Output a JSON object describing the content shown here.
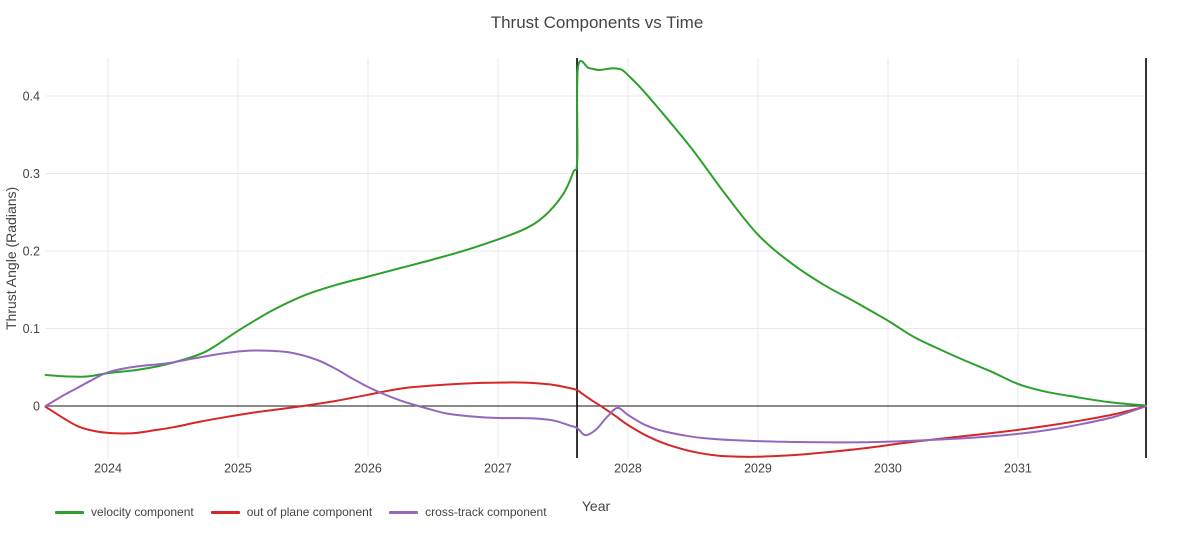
{
  "chart_data": {
    "type": "line",
    "title": "Thrust Components vs Time",
    "xlabel": "Year",
    "ylabel": "Thrust Angle (Radians)",
    "grid": true,
    "legend_position": "bottom-left",
    "background_color": "#ffffff",
    "gridline_color": "#e9e9e9",
    "zeroline_color": "#444444",
    "text_color": "#444444",
    "x_range": [
      2023.523,
      2031.985
    ],
    "y_range": [
      -0.0671,
      0.449
    ],
    "x_ticks": [
      {
        "v": 2024,
        "label": "2024"
      },
      {
        "v": 2025,
        "label": "2025"
      },
      {
        "v": 2026,
        "label": "2026"
      },
      {
        "v": 2027,
        "label": "2027"
      },
      {
        "v": 2028,
        "label": "2028"
      },
      {
        "v": 2029,
        "label": "2029"
      },
      {
        "v": 2030,
        "label": "2030"
      },
      {
        "v": 2031,
        "label": "2031"
      }
    ],
    "y_ticks": [
      {
        "v": 0,
        "label": "0"
      },
      {
        "v": 0.1,
        "label": "0.1"
      },
      {
        "v": 0.2,
        "label": "0.2"
      },
      {
        "v": 0.3,
        "label": "0.3"
      },
      {
        "v": 0.4,
        "label": "0.4"
      }
    ],
    "vlines": [
      {
        "x": 2027.608,
        "color": "#000000"
      },
      {
        "x": 2031.985,
        "color": "#000000"
      }
    ],
    "series": [
      {
        "name": "velocity component",
        "color": "#2ca02c",
        "points": [
          [
            2023.52,
            0.04
          ],
          [
            2023.7,
            0.038
          ],
          [
            2023.85,
            0.0382
          ],
          [
            2024.0,
            0.0425
          ],
          [
            2024.25,
            0.0472
          ],
          [
            2024.5,
            0.056
          ],
          [
            2024.75,
            0.07
          ],
          [
            2025.0,
            0.097
          ],
          [
            2025.25,
            0.122
          ],
          [
            2025.5,
            0.142
          ],
          [
            2025.75,
            0.156
          ],
          [
            2026.0,
            0.167
          ],
          [
            2026.25,
            0.178
          ],
          [
            2026.5,
            0.189
          ],
          [
            2026.75,
            0.201
          ],
          [
            2027.0,
            0.215
          ],
          [
            2027.2,
            0.228
          ],
          [
            2027.35,
            0.244
          ],
          [
            2027.5,
            0.273
          ],
          [
            2027.58,
            0.302
          ],
          [
            2027.61,
            0.318
          ],
          [
            2027.615,
            0.4365
          ],
          [
            2027.7,
            0.436
          ],
          [
            2027.78,
            0.4335
          ],
          [
            2027.88,
            0.4358
          ],
          [
            2027.95,
            0.434
          ],
          [
            2028.0,
            0.427
          ],
          [
            2028.1,
            0.41
          ],
          [
            2028.25,
            0.381
          ],
          [
            2028.5,
            0.33
          ],
          [
            2028.75,
            0.273
          ],
          [
            2029.0,
            0.221
          ],
          [
            2029.25,
            0.185
          ],
          [
            2029.5,
            0.157
          ],
          [
            2029.75,
            0.134
          ],
          [
            2030.0,
            0.11
          ],
          [
            2030.2,
            0.089
          ],
          [
            2030.42,
            0.0715
          ],
          [
            2030.6,
            0.058
          ],
          [
            2030.8,
            0.044
          ],
          [
            2031.0,
            0.0285
          ],
          [
            2031.2,
            0.019
          ],
          [
            2031.45,
            0.0115
          ],
          [
            2031.7,
            0.005
          ],
          [
            2031.985,
            0.0005
          ]
        ]
      },
      {
        "name": "out of plane component",
        "color": "#d62728",
        "points": [
          [
            2023.52,
            -0.001
          ],
          [
            2023.66,
            -0.016
          ],
          [
            2023.78,
            -0.027
          ],
          [
            2023.92,
            -0.033
          ],
          [
            2024.05,
            -0.0352
          ],
          [
            2024.2,
            -0.035
          ],
          [
            2024.35,
            -0.0315
          ],
          [
            2024.5,
            -0.0275
          ],
          [
            2024.7,
            -0.0205
          ],
          [
            2024.9,
            -0.0145
          ],
          [
            2025.1,
            -0.009
          ],
          [
            2025.3,
            -0.0045
          ],
          [
            2025.5,
            0.0
          ],
          [
            2025.75,
            0.0065
          ],
          [
            2026.0,
            0.0145
          ],
          [
            2026.25,
            0.0225
          ],
          [
            2026.5,
            0.0265
          ],
          [
            2026.75,
            0.029
          ],
          [
            2027.0,
            0.0302
          ],
          [
            2027.2,
            0.0302
          ],
          [
            2027.4,
            0.0278
          ],
          [
            2027.55,
            0.0232
          ],
          [
            2027.61,
            0.0205
          ],
          [
            2027.64,
            0.0168
          ],
          [
            2027.72,
            0.0075
          ],
          [
            2027.8,
            -0.001
          ],
          [
            2027.9,
            -0.0125
          ],
          [
            2028.0,
            -0.0245
          ],
          [
            2028.15,
            -0.039
          ],
          [
            2028.3,
            -0.0495
          ],
          [
            2028.5,
            -0.059
          ],
          [
            2028.7,
            -0.0642
          ],
          [
            2028.9,
            -0.0656
          ],
          [
            2029.1,
            -0.0649
          ],
          [
            2029.35,
            -0.0624
          ],
          [
            2029.6,
            -0.0586
          ],
          [
            2029.85,
            -0.054
          ],
          [
            2030.1,
            -0.0482
          ],
          [
            2030.35,
            -0.0432
          ],
          [
            2030.6,
            -0.0386
          ],
          [
            2030.9,
            -0.0329
          ],
          [
            2031.2,
            -0.0262
          ],
          [
            2031.5,
            -0.0183
          ],
          [
            2031.75,
            -0.0103
          ],
          [
            2031.985,
            -0.0003
          ]
        ]
      },
      {
        "name": "cross-track component",
        "color": "#9467bd",
        "points": [
          [
            2023.52,
            0.0
          ],
          [
            2023.66,
            0.014
          ],
          [
            2023.76,
            0.023
          ],
          [
            2023.86,
            0.032
          ],
          [
            2024.0,
            0.0435
          ],
          [
            2024.2,
            0.0505
          ],
          [
            2024.45,
            0.055
          ],
          [
            2024.65,
            0.061
          ],
          [
            2024.85,
            0.067
          ],
          [
            2025.05,
            0.071
          ],
          [
            2025.2,
            0.0715
          ],
          [
            2025.4,
            0.069
          ],
          [
            2025.6,
            0.06
          ],
          [
            2025.75,
            0.048
          ],
          [
            2025.9,
            0.0335
          ],
          [
            2026.05,
            0.0205
          ],
          [
            2026.25,
            0.007
          ],
          [
            2026.42,
            -0.0015
          ],
          [
            2026.6,
            -0.0095
          ],
          [
            2026.8,
            -0.0135
          ],
          [
            2027.0,
            -0.0155
          ],
          [
            2027.25,
            -0.0158
          ],
          [
            2027.42,
            -0.0185
          ],
          [
            2027.55,
            -0.025
          ],
          [
            2027.61,
            -0.0285
          ],
          [
            2027.67,
            -0.0375
          ],
          [
            2027.75,
            -0.031
          ],
          [
            2027.84,
            -0.014
          ],
          [
            2027.92,
            -0.0025
          ],
          [
            2028.0,
            -0.0115
          ],
          [
            2028.12,
            -0.0235
          ],
          [
            2028.25,
            -0.0315
          ],
          [
            2028.45,
            -0.0385
          ],
          [
            2028.65,
            -0.0425
          ],
          [
            2028.9,
            -0.0447
          ],
          [
            2029.2,
            -0.0462
          ],
          [
            2029.5,
            -0.0468
          ],
          [
            2029.8,
            -0.0468
          ],
          [
            2030.1,
            -0.0455
          ],
          [
            2030.4,
            -0.0432
          ],
          [
            2030.7,
            -0.0403
          ],
          [
            2031.0,
            -0.036
          ],
          [
            2031.25,
            -0.0305
          ],
          [
            2031.5,
            -0.023
          ],
          [
            2031.75,
            -0.0135
          ],
          [
            2031.985,
            -0.0003
          ]
        ]
      }
    ]
  }
}
